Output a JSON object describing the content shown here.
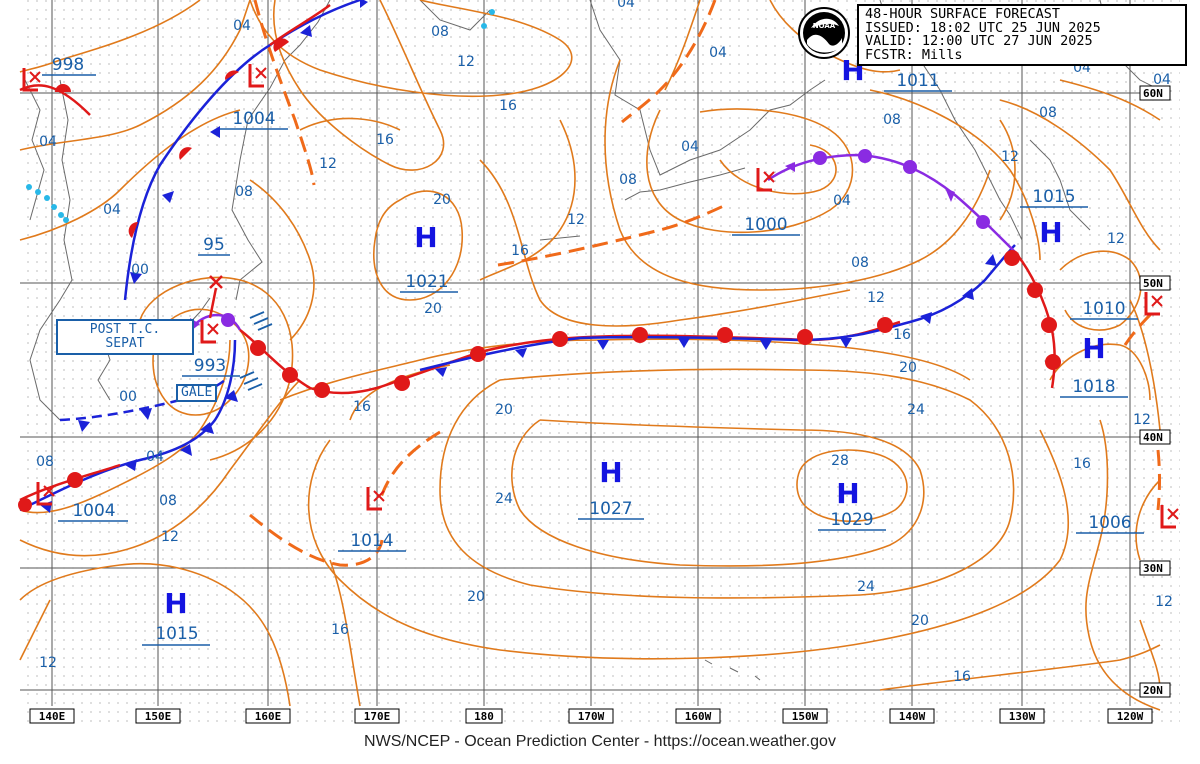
{
  "header": {
    "title": "48-HOUR SURFACE FORECAST",
    "issued": "ISSUED: 18:02 UTC 25 JUN 2025",
    "valid": "VALID:  12:00 UTC 27 JUN 2025",
    "forecaster": "FCSTR:  Mills",
    "logo_text": "NOAA"
  },
  "footer": {
    "credit": "NWS/NCEP - Ocean Prediction Center - https://ocean.weather.gov"
  },
  "labels": {
    "post_tc": "POST T.C.",
    "post_tc_name": "SEPAT",
    "gale": "GALE",
    "tc_pressure": "95"
  },
  "longitudes": [
    "140E",
    "150E",
    "160E",
    "170E",
    "180",
    "170W",
    "160W",
    "150W",
    "140W",
    "130W",
    "120W"
  ],
  "latitudes": [
    "60N",
    "50N",
    "40N",
    "30N",
    "20N"
  ],
  "highs": [
    {
      "letter": "H",
      "pressure": "1021"
    },
    {
      "letter": "H",
      "pressure": "1027"
    },
    {
      "letter": "H",
      "pressure": "1029"
    },
    {
      "letter": "H",
      "pressure": "1015"
    },
    {
      "letter": "H",
      "pressure": "1011"
    },
    {
      "letter": "H",
      "pressure": "1015"
    },
    {
      "letter": "H",
      "pressure": "1018"
    }
  ],
  "lows": [
    {
      "pressure": "998"
    },
    {
      "pressure": "1004"
    },
    {
      "pressure": "993"
    },
    {
      "pressure": "1004"
    },
    {
      "pressure": "1014"
    },
    {
      "pressure": "1000"
    },
    {
      "pressure": "1010"
    },
    {
      "pressure": "1006"
    }
  ],
  "isobar_labels": [
    "04",
    "08",
    "12",
    "16",
    "20",
    "24",
    "28",
    "00"
  ],
  "colors": {
    "isobar": "#e07a1c",
    "label_blue": "#1a5fa8",
    "cold_front": "#1b22d8",
    "warm_front": "#e01919",
    "occluded": "#8a2be2",
    "trough": "#f06a1a",
    "coast": "#666666",
    "grid": "#555555"
  }
}
